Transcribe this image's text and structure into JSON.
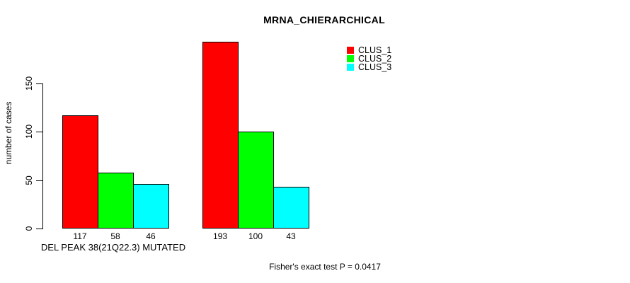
{
  "chart_data": {
    "type": "bar",
    "title": "MRNA_CHIERARCHICAL",
    "ylabel": "number of cases",
    "xlabel": "DEL PEAK 38(21Q22.3) MUTATED",
    "footnote": "Fisher's exact test P = 0.0417",
    "ylim": [
      0,
      150
    ],
    "yticks": [
      0,
      50,
      100,
      150
    ],
    "grid": false,
    "background": "#ffffff",
    "axis_color": "#000000",
    "bar_border_color": "#000000",
    "legend": {
      "position": "top-right"
    },
    "series": [
      {
        "name": "CLUS_1",
        "color": "#ff0000",
        "values": [
          117,
          193
        ]
      },
      {
        "name": "CLUS_2",
        "color": "#00ff00",
        "values": [
          58,
          100
        ]
      },
      {
        "name": "CLUS_3",
        "color": "#00ffff",
        "values": [
          46,
          43
        ]
      }
    ],
    "bar_value_labels": [
      [
        "117",
        "58",
        "46"
      ],
      [
        "193",
        "100",
        "43"
      ]
    ]
  }
}
